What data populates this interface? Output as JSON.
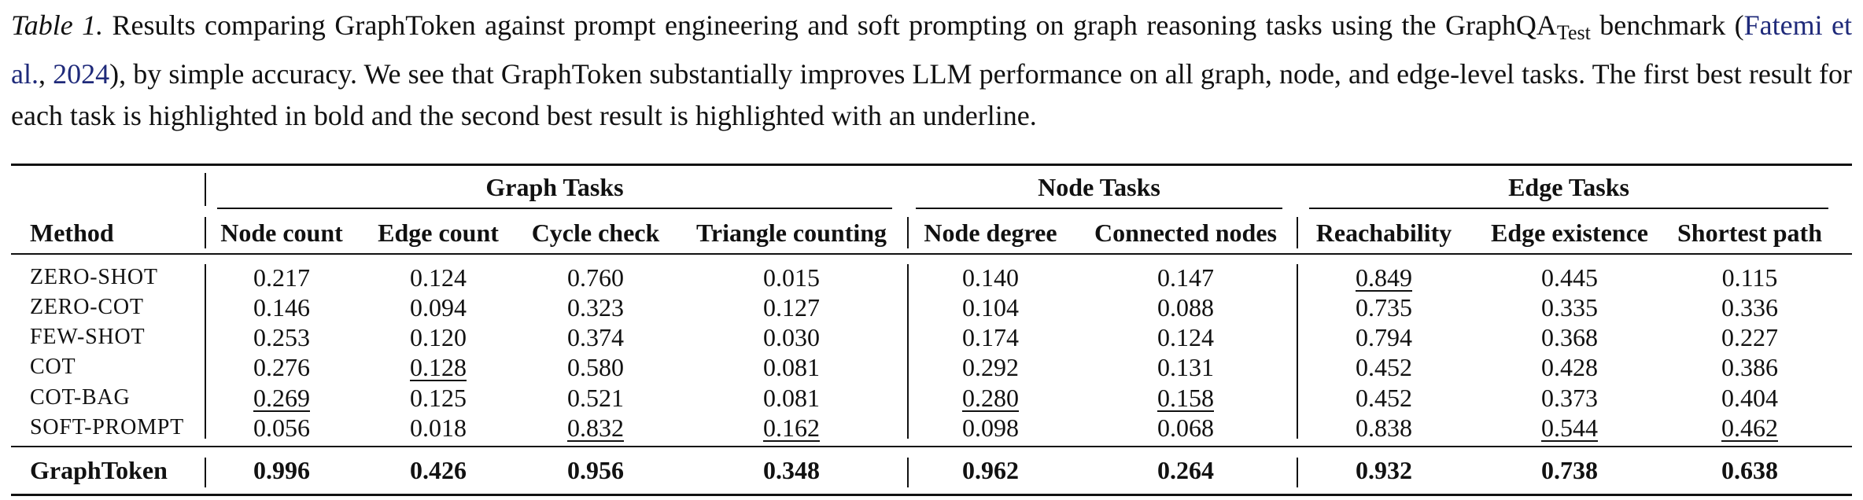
{
  "caption": {
    "label": "Table 1.",
    "text_before_sub": " Results comparing GraphToken against prompt engineering and soft prompting on graph reasoning tasks using the GraphQA",
    "subscript": "Test",
    "text_after_sub": " benchmark (",
    "cite_author": "Fatemi et al.",
    "cite_sep": ", ",
    "cite_year": "2024",
    "text_end": "), by simple accuracy. We see that GraphToken substantially improves LLM performance on all graph, node, and edge-level tasks. The first best result for each task is highlighted in bold and the second best result is highlighted with an underline."
  },
  "groups": [
    "Graph Tasks",
    "Node Tasks",
    "Edge Tasks"
  ],
  "method_header": "Method",
  "columns": [
    "Node count",
    "Edge count",
    "Cycle check",
    "Triangle counting",
    "Node degree",
    "Connected nodes",
    "Reachability",
    "Edge existence",
    "Shortest path"
  ],
  "rows": [
    {
      "method": "ZERO-SHOT",
      "values": [
        "0.217",
        "0.124",
        "0.760",
        "0.015",
        "0.140",
        "0.147",
        "0.849",
        "0.445",
        "0.115"
      ],
      "underline": [
        6
      ]
    },
    {
      "method": "ZERO-COT",
      "values": [
        "0.146",
        "0.094",
        "0.323",
        "0.127",
        "0.104",
        "0.088",
        "0.735",
        "0.335",
        "0.336"
      ],
      "underline": []
    },
    {
      "method": "FEW-SHOT",
      "values": [
        "0.253",
        "0.120",
        "0.374",
        "0.030",
        "0.174",
        "0.124",
        "0.794",
        "0.368",
        "0.227"
      ],
      "underline": []
    },
    {
      "method": "COT",
      "values": [
        "0.276",
        "0.128",
        "0.580",
        "0.081",
        "0.292",
        "0.131",
        "0.452",
        "0.428",
        "0.386"
      ],
      "underline": [
        1
      ]
    },
    {
      "method": "COT-BAG",
      "values": [
        "0.269",
        "0.125",
        "0.521",
        "0.081",
        "0.280",
        "0.158",
        "0.452",
        "0.373",
        "0.404"
      ],
      "underline": [
        0,
        4,
        5
      ]
    },
    {
      "method": "SOFT-PROMPT",
      "values": [
        "0.056",
        "0.018",
        "0.832",
        "0.162",
        "0.098",
        "0.068",
        "0.838",
        "0.544",
        "0.462"
      ],
      "underline": [
        2,
        3,
        7,
        8
      ]
    }
  ],
  "best_row": {
    "method": "GraphToken",
    "values": [
      "0.996",
      "0.426",
      "0.956",
      "0.348",
      "0.962",
      "0.264",
      "0.932",
      "0.738",
      "0.638"
    ]
  }
}
